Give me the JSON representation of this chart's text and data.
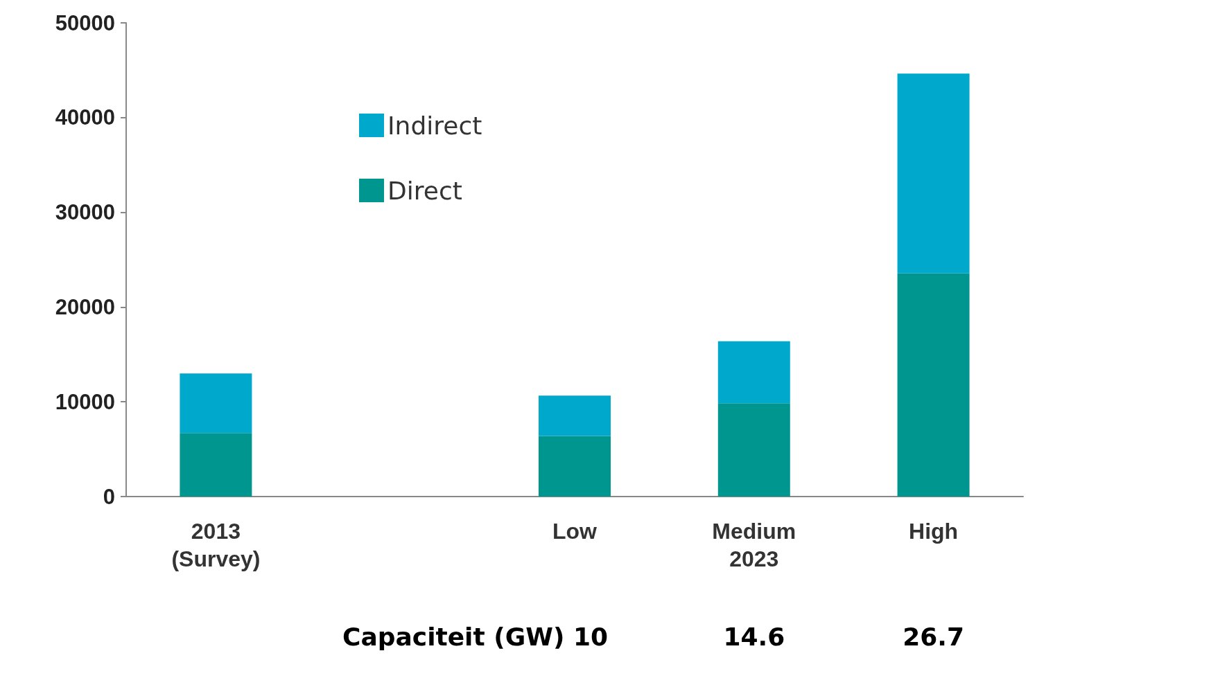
{
  "chart_data": {
    "type": "bar",
    "stacked": true,
    "categories": [
      "2013\n(Survey)",
      null,
      "Low",
      "Medium\n2023",
      "High"
    ],
    "series": [
      {
        "name": "Direct",
        "color": "#009690",
        "values": [
          6700,
          null,
          6400,
          9850,
          23550
        ]
      },
      {
        "name": "Indirect",
        "color": "#00a9cc",
        "values": [
          6300,
          null,
          4250,
          6550,
          21100
        ]
      }
    ],
    "ylim": [
      0,
      50000
    ],
    "yticks": [
      0,
      10000,
      20000,
      30000,
      40000,
      50000
    ],
    "grid": false,
    "legend": "top left",
    "annotations": [
      "Capaciteit (GW) 10",
      "14.6",
      "26.7"
    ]
  }
}
